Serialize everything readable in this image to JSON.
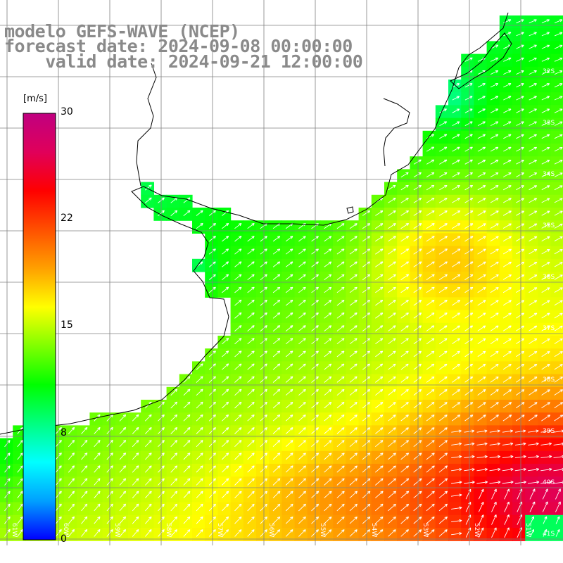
{
  "title": {
    "line1": "modelo GEFS-WAVE (NCEP)",
    "line2": "forecast date: 2024-09-08 00:00:00",
    "line3": "    valid date: 2024-09-21 12:00:00"
  },
  "colorbar": {
    "unit": "[m/s]",
    "ticks": [
      "30",
      "22",
      "15",
      "8",
      "0"
    ],
    "stops": [
      "#0000ff",
      "#00a0ff",
      "#00ffff",
      "#00ff80",
      "#00ff00",
      "#80ff00",
      "#ffff00",
      "#ffa000",
      "#ff5000",
      "#ff0000",
      "#e0005a",
      "#c00080"
    ]
  },
  "grid": {
    "lat_labels": [
      "32S",
      "33S",
      "34S",
      "35S",
      "36S",
      "37S",
      "38S",
      "39S",
      "40S",
      "41S"
    ],
    "lon_labels": [
      "61W",
      "60W",
      "59W",
      "58W",
      "57W",
      "56W",
      "55W",
      "54W",
      "53W",
      "52W",
      "51W"
    ]
  },
  "colors": {
    "land": "#ffffff",
    "coast": "#000000",
    "grid": "#808080",
    "arrows": "#ffffff"
  }
}
